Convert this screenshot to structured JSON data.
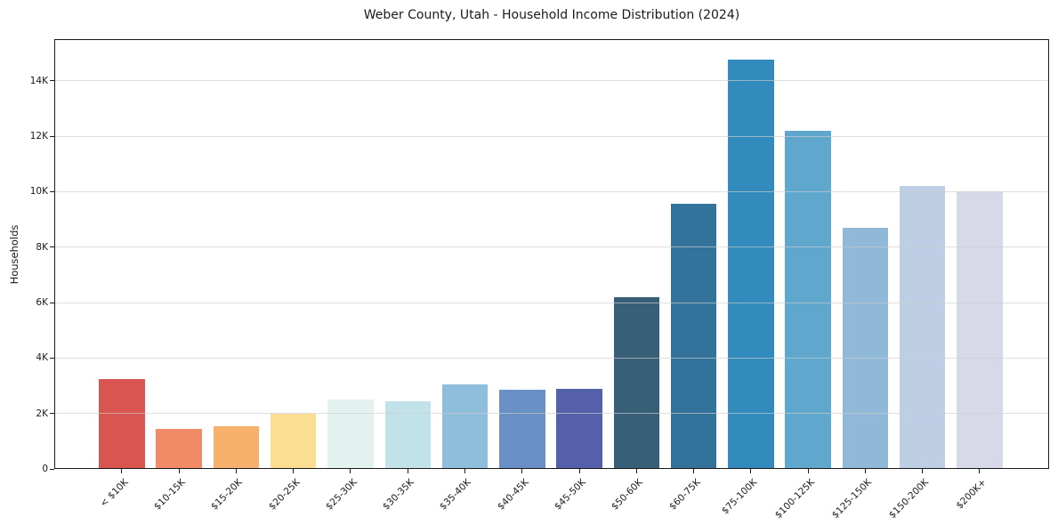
{
  "figure": {
    "title": "Weber County, Utah - Household Income Distribution (2024)",
    "ylabel": "Households"
  },
  "chart_data": {
    "type": "bar",
    "title": "Weber County, Utah - Household Income Distribution (2024)",
    "xlabel": "",
    "ylabel": "Households",
    "categories": [
      "< $10K",
      "$10-15K",
      "$15-20K",
      "$20-25K",
      "$25-30K",
      "$30-35K",
      "$35-40K",
      "$40-45K",
      "$45-50K",
      "$50-60K",
      "$60-75K",
      "$75-100K",
      "$100-125K",
      "$125-150K",
      "$150-200K",
      "$200K+"
    ],
    "values": [
      3250,
      1450,
      1550,
      2000,
      2500,
      2450,
      3050,
      2850,
      2900,
      6200,
      9550,
      14750,
      12200,
      8700,
      10200,
      10000
    ],
    "bar_colors": [
      "#d8564f",
      "#f28a68",
      "#f8b16d",
      "#fbde92",
      "#e3f2ef",
      "#c2e2ea",
      "#8fbddc",
      "#6890c4",
      "#5560ab",
      "#375f78",
      "#33729b",
      "#338abc",
      "#5fa7cd",
      "#8fb8d9",
      "#becfe5",
      "#d8d9e8"
    ],
    "ylim": [
      0,
      15500
    ],
    "ytick_values": [
      0,
      2000,
      4000,
      6000,
      8000,
      10000,
      12000,
      14000
    ],
    "ytick_labels": [
      "0",
      "2K",
      "4K",
      "6K",
      "8K",
      "10K",
      "12K",
      "14K"
    ],
    "grid": "horizontal",
    "gridlines_above_bars": true,
    "legend": "none",
    "x_tick_rotation_deg": 45,
    "plot_background": "#ffffff",
    "axis_color": "#1a1a1a"
  }
}
